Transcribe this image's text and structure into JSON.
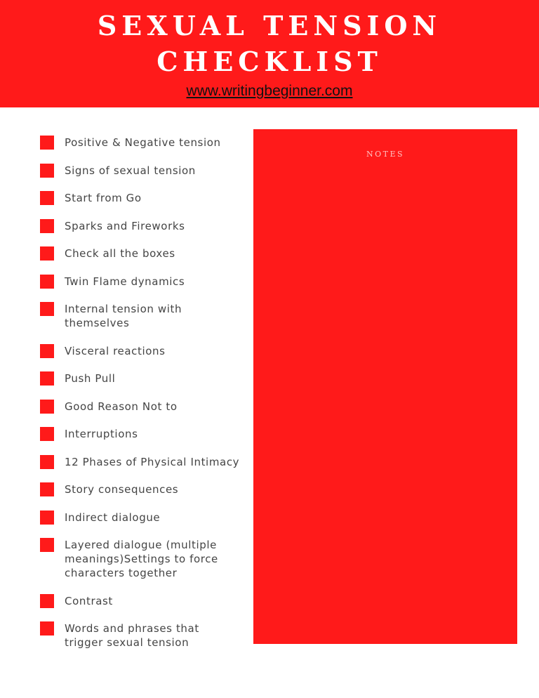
{
  "header": {
    "title_lines": [
      "SEXUAL TENSION",
      "CHECKLIST"
    ],
    "url": "www.writingbeginner.com"
  },
  "checklist": {
    "items": [
      "Positive & Negative tension",
      "Signs of sexual tension",
      "Start from Go",
      "Sparks and Fireworks",
      "Check all the boxes",
      "Twin Flame dynamics",
      "Internal tension with themselves",
      "Visceral reactions",
      "Push Pull",
      "Good Reason Not to",
      "Interruptions",
      "12 Phases of Physical Intimacy",
      "Story consequences",
      "Indirect dialogue",
      "Layered dialogue (multiple meanings)Settings to force characters together",
      "Contrast",
      "Words and phrases that trigger sexual tension"
    ]
  },
  "notes": {
    "label": "NOTES"
  }
}
